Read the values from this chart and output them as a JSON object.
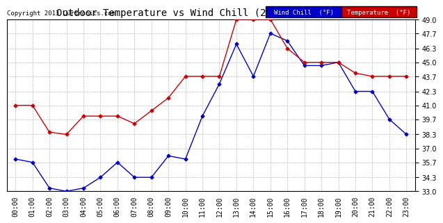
{
  "title": "Outdoor Temperature vs Wind Chill (24 Hours) 20131110",
  "copyright": "Copyright 2013 Curtronics.com",
  "hours": [
    "00:00",
    "01:00",
    "02:00",
    "03:00",
    "04:00",
    "05:00",
    "06:00",
    "07:00",
    "08:00",
    "09:00",
    "10:00",
    "11:00",
    "12:00",
    "13:00",
    "14:00",
    "15:00",
    "16:00",
    "17:00",
    "18:00",
    "19:00",
    "20:00",
    "21:00",
    "22:00",
    "23:00"
  ],
  "temperature": [
    41.0,
    41.0,
    38.5,
    38.3,
    40.0,
    40.0,
    40.0,
    39.3,
    40.5,
    41.7,
    43.7,
    43.7,
    43.7,
    49.0,
    49.0,
    49.0,
    46.3,
    45.0,
    45.0,
    45.0,
    44.0,
    43.7,
    43.7,
    43.7
  ],
  "wind_chill": [
    36.0,
    35.7,
    33.3,
    33.0,
    33.3,
    34.3,
    35.7,
    34.3,
    34.3,
    36.3,
    36.0,
    40.0,
    43.0,
    46.7,
    43.7,
    47.7,
    47.0,
    44.7,
    44.7,
    45.0,
    42.3,
    42.3,
    39.7,
    38.3
  ],
  "ylim": [
    33.0,
    49.0
  ],
  "yticks": [
    33.0,
    34.3,
    35.7,
    37.0,
    38.3,
    39.7,
    41.0,
    42.3,
    43.7,
    45.0,
    46.3,
    47.7,
    49.0
  ],
  "temp_color": "#cc0000",
  "wind_chill_color": "#0000cc",
  "bg_color": "#ffffff",
  "grid_color": "#aaaaaa",
  "title_fontsize": 10,
  "legend_wind_chill_bg": "#0000cc",
  "legend_temp_bg": "#cc0000",
  "legend_text_color": "#ffffff"
}
